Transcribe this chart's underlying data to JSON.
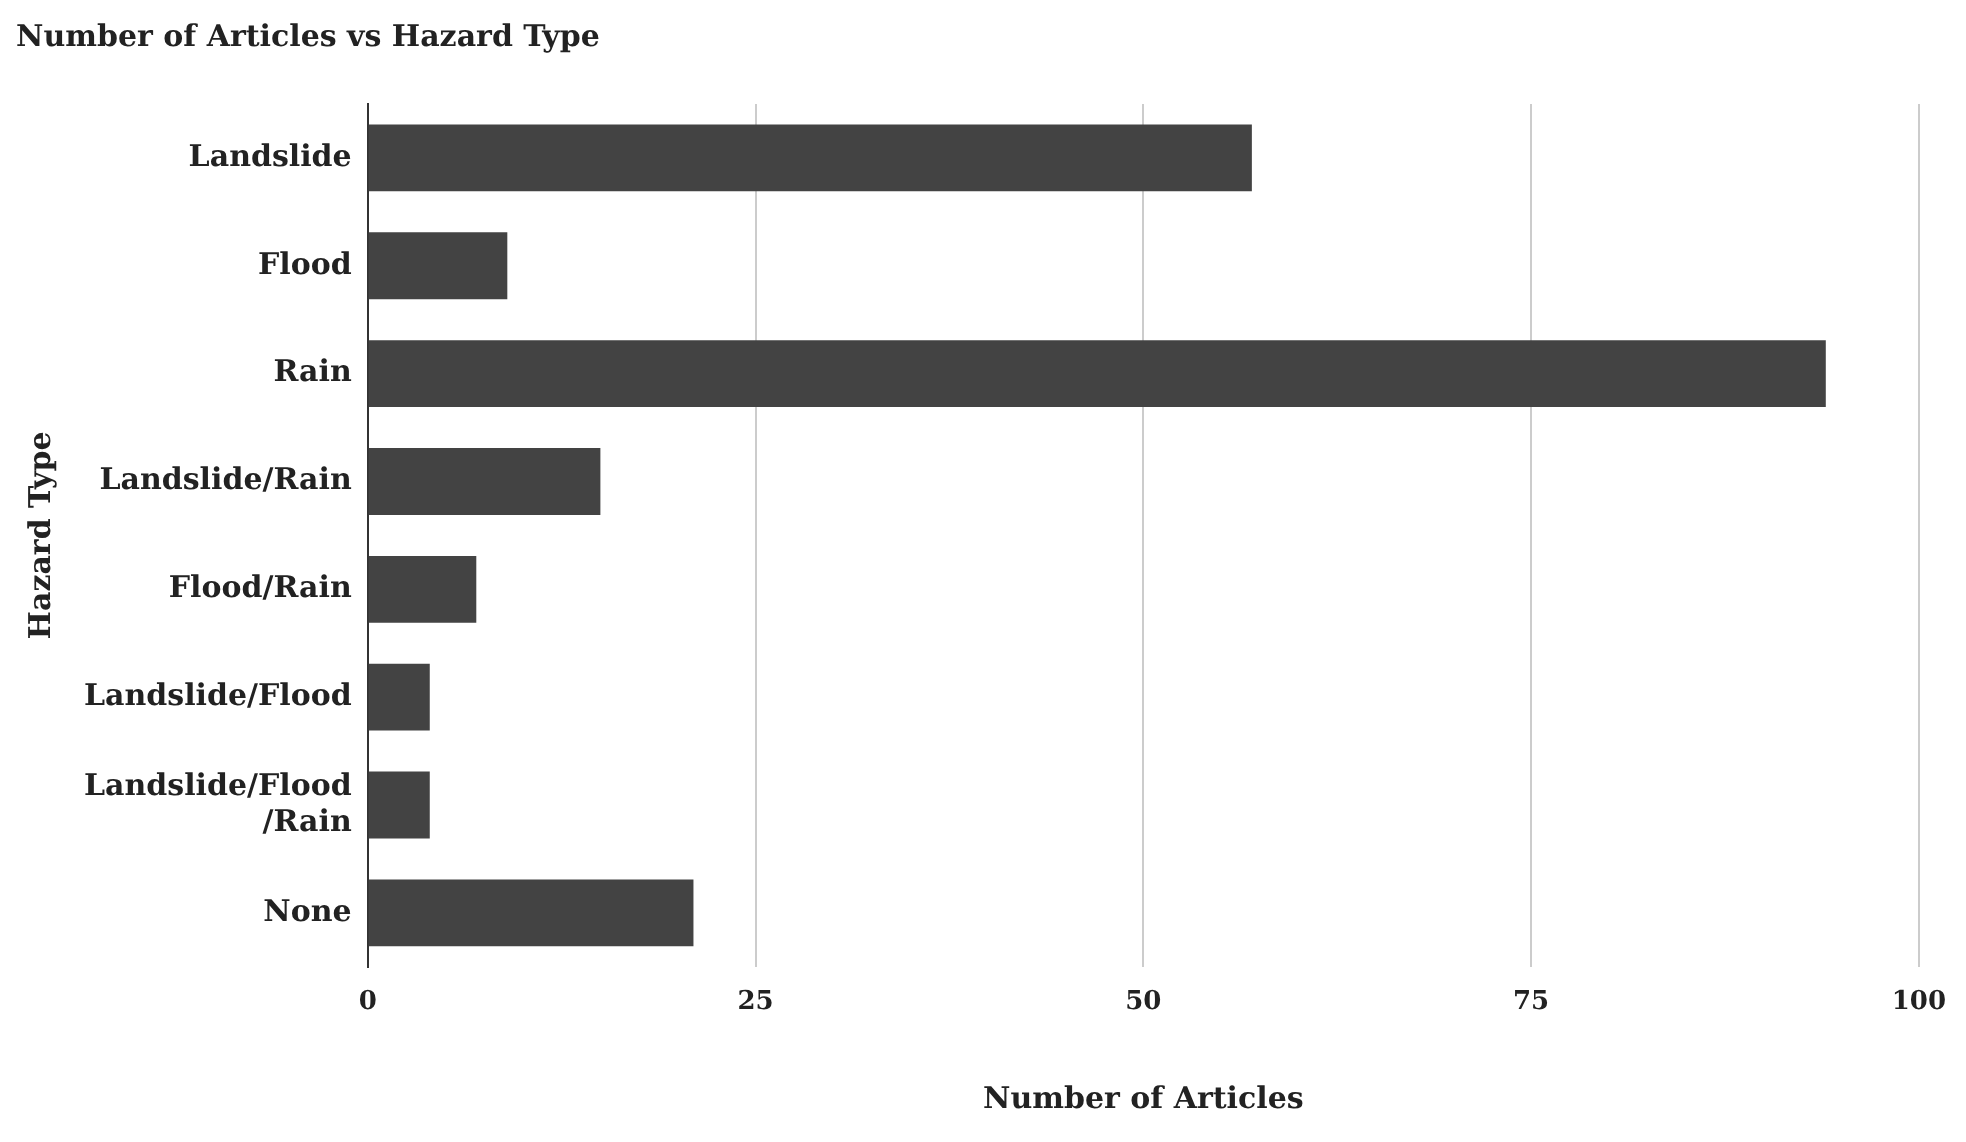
{
  "chart_data": {
    "type": "bar",
    "orientation": "horizontal",
    "title": "Number of Articles vs Hazard Type",
    "xlabel": "Number of Articles",
    "ylabel": "Hazard Type",
    "categories": [
      "Landslide",
      "Flood",
      "Rain",
      "Landslide/Rain",
      "Flood/Rain",
      "Landslide/Flood",
      "Landslide/Flood/Rain",
      "None"
    ],
    "values": [
      57,
      9,
      94,
      15,
      7,
      4,
      4,
      21
    ],
    "color": "#434343",
    "xlim": [
      0,
      100
    ],
    "xticks": [
      0,
      25,
      50,
      75,
      100
    ],
    "grid": "x"
  }
}
